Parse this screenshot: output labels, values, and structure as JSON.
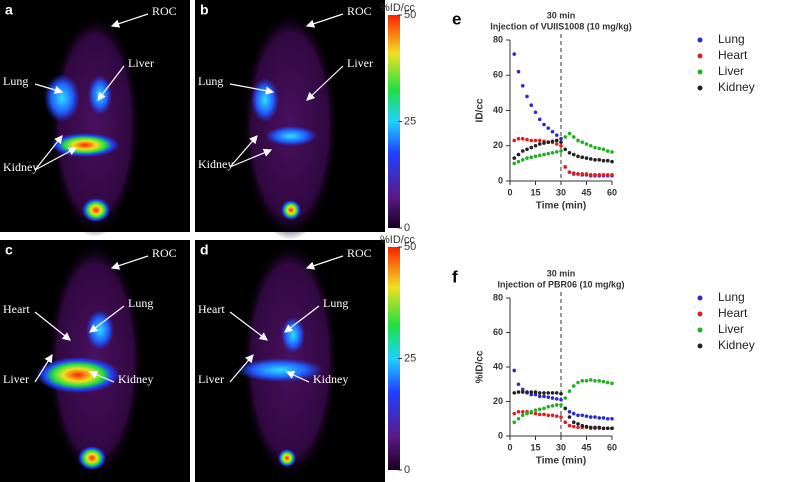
{
  "images": [
    {
      "label": "a",
      "annotations": [
        "ROC",
        "Lung",
        "Liver",
        "Kidney"
      ]
    },
    {
      "label": "b",
      "annotations": [
        "ROC",
        "Lung",
        "Liver",
        "Kidney"
      ]
    },
    {
      "label": "c",
      "annotations": [
        "ROC",
        "Heart",
        "Lung",
        "Liver",
        "Kidney"
      ]
    },
    {
      "label": "d",
      "annotations": [
        "ROC",
        "Heart",
        "Lung",
        "Liver",
        "Kidney"
      ]
    }
  ],
  "colorbars": [
    {
      "title": "%ID/cc",
      "ticks": [
        50,
        25,
        0
      ]
    },
    {
      "title": "%ID/cc",
      "ticks": [
        50,
        25,
        0
      ]
    }
  ],
  "chart_data": [
    {
      "type": "scatter",
      "panel": "e",
      "title": "30 min",
      "subtitle": "Injection of VUIIS1008 (10 mg/kg)",
      "x_label": "Time (min)",
      "y_label": "ID/cc",
      "xlim": [
        0,
        60
      ],
      "xticks": [
        0,
        15,
        30,
        45,
        60
      ],
      "ylim": [
        0,
        80
      ],
      "yticks": [
        0,
        20,
        40,
        60,
        80
      ],
      "vline": 30,
      "legend": "right",
      "x": [
        2.5,
        5,
        7.5,
        10,
        12.5,
        15,
        17.5,
        20,
        22.5,
        25,
        27.5,
        30,
        32.5,
        35,
        37.5,
        40,
        42.5,
        45,
        47.5,
        50,
        52.5,
        55,
        57.5,
        60
      ],
      "series": [
        {
          "name": "Lung",
          "color": "#2a2ad0",
          "values": [
            72,
            62,
            54,
            48,
            43,
            39,
            35,
            32,
            30,
            28,
            26,
            24,
            8,
            5,
            4,
            4,
            3.5,
            3.5,
            3,
            3,
            3,
            3,
            3,
            3
          ]
        },
        {
          "name": "Heart",
          "color": "#e02020",
          "values": [
            23,
            24,
            24,
            23.5,
            23,
            23,
            23,
            22.5,
            22,
            22,
            21,
            20,
            8,
            5,
            4.5,
            4,
            4,
            4,
            3.5,
            3.5,
            3.5,
            3.5,
            3.5,
            3.5
          ]
        },
        {
          "name": "Liver",
          "color": "#20b020",
          "values": [
            10,
            11,
            12,
            13,
            13.5,
            14,
            14.5,
            15,
            15.5,
            16,
            16.5,
            17,
            25,
            27,
            25,
            23,
            22,
            21,
            20,
            19,
            18.5,
            18,
            17,
            16.5
          ]
        },
        {
          "name": "Kidney",
          "color": "#222222",
          "values": [
            13,
            15,
            17,
            18,
            19,
            20,
            21,
            21.5,
            22,
            22.5,
            23,
            22,
            18,
            16,
            15,
            14,
            13.5,
            13,
            12.5,
            12,
            12,
            11.5,
            11.5,
            11
          ]
        }
      ]
    },
    {
      "type": "scatter",
      "panel": "f",
      "title": "30 min",
      "subtitle": "Injection of PBR06 (10 mg/kg)",
      "x_label": "Time (min)",
      "y_label": "%ID/cc",
      "xlim": [
        0,
        60
      ],
      "xticks": [
        0,
        15,
        30,
        45,
        60
      ],
      "ylim": [
        0,
        80
      ],
      "yticks": [
        0,
        20,
        40,
        60,
        80
      ],
      "vline": 30,
      "legend": "right",
      "x": [
        2.5,
        5,
        7.5,
        10,
        12.5,
        15,
        17.5,
        20,
        22.5,
        25,
        27.5,
        30,
        32.5,
        35,
        37.5,
        40,
        42.5,
        45,
        47.5,
        50,
        52.5,
        55,
        57.5,
        60
      ],
      "series": [
        {
          "name": "Lung",
          "color": "#2a2ad0",
          "values": [
            38,
            30,
            27,
            25,
            24,
            24,
            23,
            23,
            22.5,
            22,
            21.5,
            21,
            16,
            14,
            13,
            12,
            12,
            11.5,
            11,
            11,
            10.5,
            10.5,
            10,
            10
          ]
        },
        {
          "name": "Heart",
          "color": "#e02020",
          "values": [
            13,
            14,
            14,
            14,
            13.5,
            13,
            12.5,
            12.5,
            12,
            12,
            11.5,
            11,
            8,
            6,
            5.5,
            5,
            5,
            5,
            4.5,
            4.5,
            4.5,
            4.5,
            4.5,
            4.5
          ]
        },
        {
          "name": "Liver",
          "color": "#20b020",
          "values": [
            8,
            10,
            12,
            13,
            14,
            15,
            15.5,
            16,
            17,
            17.5,
            18,
            18,
            22,
            26,
            29,
            31,
            32,
            32,
            32.5,
            32,
            32,
            31.5,
            31,
            30.5
          ]
        },
        {
          "name": "Kidney",
          "color": "#222222",
          "values": [
            25,
            25.5,
            25.5,
            25.5,
            25.5,
            25.5,
            25,
            25,
            25,
            25,
            25,
            24.5,
            16,
            11,
            8,
            7,
            6,
            5.5,
            5,
            5,
            5,
            4.5,
            4.5,
            4.5
          ]
        }
      ]
    }
  ]
}
